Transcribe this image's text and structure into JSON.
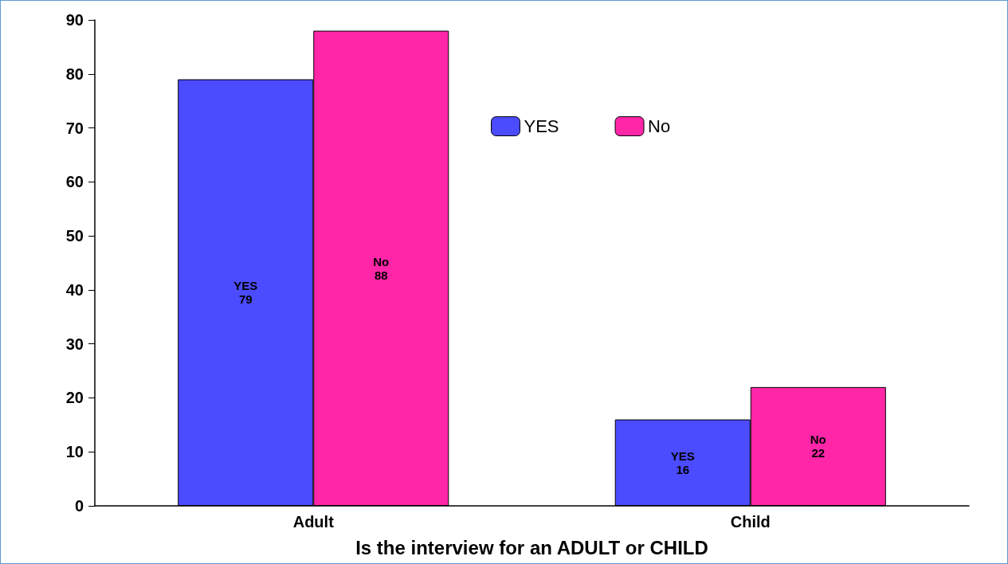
{
  "chart_data": {
    "type": "bar",
    "xlabel": "Is the interview for an ADULT or CHILD",
    "categories": [
      "Adult",
      "Child"
    ],
    "series": [
      {
        "name": "YES",
        "color": "#4b4bff",
        "values": [
          79,
          16
        ]
      },
      {
        "name": "No",
        "color": "#ff26a8",
        "values": [
          88,
          22
        ]
      }
    ],
    "ylim": [
      0,
      90
    ],
    "yticks": [
      0,
      10,
      20,
      30,
      40,
      50,
      60,
      70,
      80,
      90
    ],
    "grid": false,
    "legend": "top",
    "data_labels": true
  }
}
